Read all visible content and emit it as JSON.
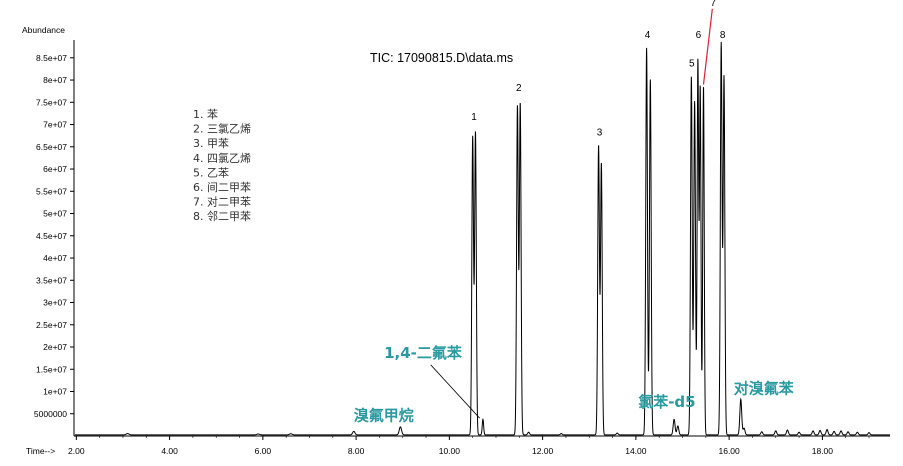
{
  "chart_data": {
    "type": "line",
    "title": "TIC: 17090815.D\\data.ms",
    "ylabel": "Abundance",
    "xlabel": "Time-->",
    "xlim": [
      1.95,
      19.45
    ],
    "ylim": [
      0,
      89000000
    ],
    "grid": false,
    "x_ticks": [
      2,
      4,
      6,
      8,
      10,
      12,
      14,
      16,
      18
    ],
    "x_tick_labels": [
      "2.00",
      "4.00",
      "6.00",
      "8.00",
      "10.00",
      "12.00",
      "14.00",
      "16.00",
      "18.00"
    ],
    "y_ticks": [
      5000000,
      10000000,
      15000000,
      20000000,
      25000000,
      30000000,
      35000000,
      40000000,
      45000000,
      50000000,
      55000000,
      60000000,
      65000000,
      70000000,
      75000000,
      80000000,
      85000000
    ],
    "y_tick_labels": [
      "5000000",
      "1e+07",
      "1.5e+07",
      "2e+07",
      "2.5e+07",
      "3e+07",
      "3.5e+07",
      "4e+07",
      "4.5e+07",
      "5e+07",
      "5.5e+07",
      "6e+07",
      "6.5e+07",
      "7e+07",
      "7.5e+07",
      "8e+07",
      "8.5e+07"
    ],
    "series": [
      {
        "color": "#000000",
        "peaks": [
          {
            "rt": 3.1,
            "height": 300000,
            "width": 0.03
          },
          {
            "rt": 5.9,
            "height": 200000,
            "width": 0.03
          },
          {
            "rt": 6.6,
            "height": 250000,
            "width": 0.03
          },
          {
            "rt": 7.95,
            "height": 800000,
            "width": 0.025
          },
          {
            "rt": 8.95,
            "height": 1800000,
            "width": 0.025
          },
          {
            "rt": 10.5,
            "height": 67000000,
            "width": 0.018
          },
          {
            "rt": 10.56,
            "height": 68000000,
            "width": 0.018
          },
          {
            "rt": 10.72,
            "height": 3500000,
            "width": 0.015
          },
          {
            "rt": 11.46,
            "height": 74000000,
            "width": 0.018
          },
          {
            "rt": 11.52,
            "height": 74500000,
            "width": 0.018
          },
          {
            "rt": 11.7,
            "height": 600000,
            "width": 0.02
          },
          {
            "rt": 12.4,
            "height": 300000,
            "width": 0.02
          },
          {
            "rt": 13.2,
            "height": 65000000,
            "width": 0.018
          },
          {
            "rt": 13.26,
            "height": 61000000,
            "width": 0.018
          },
          {
            "rt": 13.6,
            "height": 400000,
            "width": 0.02
          },
          {
            "rt": 14.23,
            "height": 87000000,
            "width": 0.018
          },
          {
            "rt": 14.31,
            "height": 80000000,
            "width": 0.018
          },
          {
            "rt": 14.82,
            "height": 3500000,
            "width": 0.02
          },
          {
            "rt": 14.9,
            "height": 2000000,
            "width": 0.02
          },
          {
            "rt": 15.19,
            "height": 80500000,
            "width": 0.018
          },
          {
            "rt": 15.26,
            "height": 75000000,
            "width": 0.018
          },
          {
            "rt": 15.33,
            "height": 84000000,
            "width": 0.016
          },
          {
            "rt": 15.38,
            "height": 78000000,
            "width": 0.016
          },
          {
            "rt": 15.45,
            "height": 78500000,
            "width": 0.016
          },
          {
            "rt": 15.83,
            "height": 88000000,
            "width": 0.018
          },
          {
            "rt": 15.89,
            "height": 80500000,
            "width": 0.018
          },
          {
            "rt": 16.25,
            "height": 8000000,
            "width": 0.02
          },
          {
            "rt": 16.32,
            "height": 1500000,
            "width": 0.02
          },
          {
            "rt": 16.7,
            "height": 700000,
            "width": 0.02
          },
          {
            "rt": 17.0,
            "height": 900000,
            "width": 0.02
          },
          {
            "rt": 17.25,
            "height": 1100000,
            "width": 0.02
          },
          {
            "rt": 17.5,
            "height": 600000,
            "width": 0.02
          },
          {
            "rt": 17.8,
            "height": 900000,
            "width": 0.02
          },
          {
            "rt": 17.95,
            "height": 1000000,
            "width": 0.02
          },
          {
            "rt": 18.1,
            "height": 1200000,
            "width": 0.02
          },
          {
            "rt": 18.25,
            "height": 800000,
            "width": 0.02
          },
          {
            "rt": 18.4,
            "height": 900000,
            "width": 0.02
          },
          {
            "rt": 18.55,
            "height": 700000,
            "width": 0.02
          },
          {
            "rt": 18.75,
            "height": 600000,
            "width": 0.02
          },
          {
            "rt": 19.0,
            "height": 500000,
            "width": 0.02
          }
        ]
      }
    ],
    "peak_labels": [
      {
        "text": "1",
        "x": 10.53,
        "y": 71000000
      },
      {
        "text": "2",
        "x": 11.49,
        "y": 77500000
      },
      {
        "text": "3",
        "x": 13.22,
        "y": 67500000
      },
      {
        "text": "4",
        "x": 14.25,
        "y": 89500000
      },
      {
        "text": "5",
        "x": 15.2,
        "y": 83000000
      },
      {
        "text": "6",
        "x": 15.34,
        "y": 89500000
      },
      {
        "text": "8",
        "x": 15.86,
        "y": 89500000
      }
    ],
    "peak7": {
      "text": "7",
      "x": 15.66,
      "y": 97500000,
      "line_from": [
        15.64,
        96000000
      ],
      "line_to": [
        15.45,
        79000000
      ],
      "line_color": "#e0203a"
    },
    "legend": {
      "placement": "top-left",
      "items": [
        "1.  苯",
        "2.  三氯乙烯",
        "3.  甲苯",
        "4.  四氯乙烯",
        "5.  乙苯",
        "6.  间二甲苯",
        "7.  对二甲苯",
        "8.  邻二甲苯"
      ]
    },
    "annotations": [
      {
        "text": "溴氟甲烷",
        "x": 7.95,
        "y": 3500000,
        "color": "#2a9aa0"
      },
      {
        "text": "1,4-二氟苯",
        "x": 8.6,
        "y": 17500000,
        "color": "#2a9aa0",
        "arrow_from": [
          9.6,
          16000000
        ],
        "arrow_to": [
          10.65,
          4000000
        ]
      },
      {
        "text": "氯苯-d5",
        "x": 14.05,
        "y": 6500000,
        "color": "#2a9aa0"
      },
      {
        "text": "对溴氟苯",
        "x": 16.1,
        "y": 9500000,
        "color": "#2a9aa0"
      }
    ]
  }
}
